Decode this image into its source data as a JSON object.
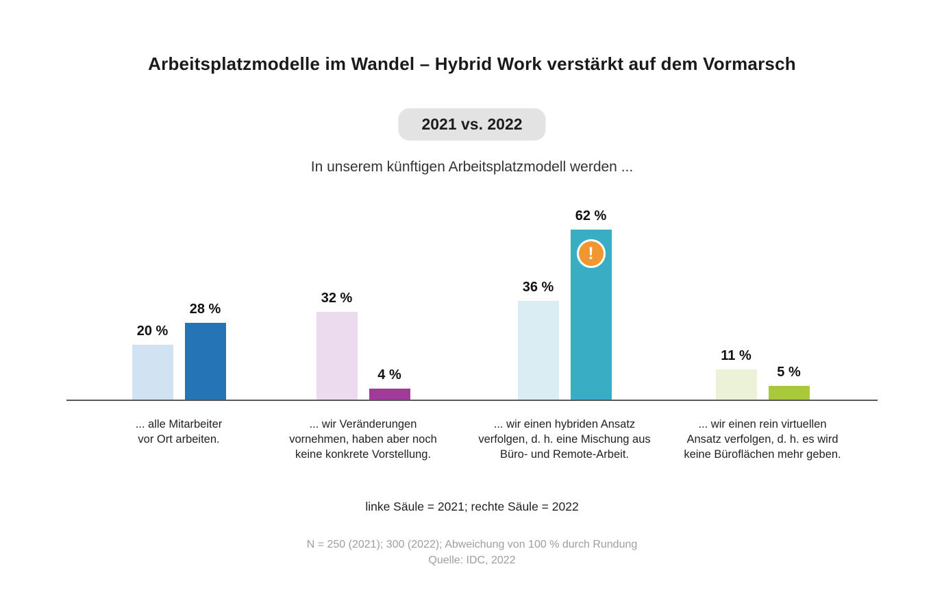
{
  "title": "Arbeitsplatzmodelle im Wandel – Hybrid Work verstärkt auf dem Vormarsch",
  "badge": "2021 vs. 2022",
  "subtitle": "In unserem künftigen Arbeitsplatzmodell werden ...",
  "legend": "linke Säule = 2021; rechte Säule = 2022",
  "footnote": {
    "line1": "N = 250 (2021); 300 (2022); Abweichung von 100 % durch Rundung",
    "line2": "Quelle: IDC, 2022"
  },
  "colors": {
    "badge_background": "#e3e3e3",
    "axis_line": "#58585a",
    "alert_orange": "#f0982f",
    "bar_2021": [
      "#d1e2f3",
      "#ecdaee",
      "#daedf3",
      "#ecf2d8"
    ],
    "bar_2022": [
      "#2575b6",
      "#a23a98",
      "#38adc3",
      "#a9c93b"
    ]
  },
  "chart_data": {
    "type": "bar",
    "title": "Arbeitsplatzmodelle im Wandel – Hybrid Work verstärkt auf dem Vormarsch",
    "subtitle": "In unserem künftigen Arbeitsplatzmodell werden ...",
    "categories": [
      "... alle Mitarbeiter vor Ort arbeiten.",
      "... wir Veränderungen vornehmen, haben aber noch keine konkrete Vorstellung.",
      "... wir einen hybriden Ansatz verfolgen, d. h. eine Mischung aus Büro- und Remote-Arbeit.",
      "... wir einen rein virtuellen Ansatz verfolgen, d. h. es wird keine Büroflächen mehr geben."
    ],
    "series": [
      {
        "name": "2021",
        "values": [
          20,
          32,
          36,
          11
        ]
      },
      {
        "name": "2022",
        "values": [
          28,
          4,
          62,
          5
        ]
      }
    ],
    "unit": "%",
    "ylim": [
      0,
      70
    ],
    "grid": false,
    "legend_position": "bottom",
    "legend_text": "linke Säule = 2021; rechte Säule = 2022",
    "annotations": [
      "Ausrufezeichen-Symbol auf der 62-%-Säule (Hybrid, 2022)"
    ]
  },
  "groups": [
    {
      "caption_lines": [
        "... alle Mitarbeiter",
        "vor Ort arbeiten."
      ],
      "bars": [
        {
          "label": "20 %",
          "value": 20,
          "color": "#d1e2f3"
        },
        {
          "label": "28 %",
          "value": 28,
          "color": "#2575b6"
        }
      ]
    },
    {
      "caption_lines": [
        "... wir Veränderungen",
        "vornehmen, haben aber noch",
        "keine konkrete Vorstellung."
      ],
      "bars": [
        {
          "label": "32 %",
          "value": 32,
          "color": "#ecdaee"
        },
        {
          "label": "4 %",
          "value": 4,
          "color": "#a23a98"
        }
      ]
    },
    {
      "caption_lines": [
        "... wir einen hybriden Ansatz",
        "verfolgen, d. h. eine Mischung aus",
        "Büro- und Remote-Arbeit."
      ],
      "bars": [
        {
          "label": "36 %",
          "value": 36,
          "color": "#daedf3"
        },
        {
          "label": "62 %",
          "value": 62,
          "color": "#38adc3",
          "alert": "!"
        }
      ]
    },
    {
      "caption_lines": [
        "... wir einen rein virtuellen",
        "Ansatz verfolgen, d. h. es wird",
        "keine Büroflächen mehr geben."
      ],
      "bars": [
        {
          "label": "11 %",
          "value": 11,
          "color": "#ecf2d8"
        },
        {
          "label": "5 %",
          "value": 5,
          "color": "#a9c93b"
        }
      ]
    }
  ]
}
